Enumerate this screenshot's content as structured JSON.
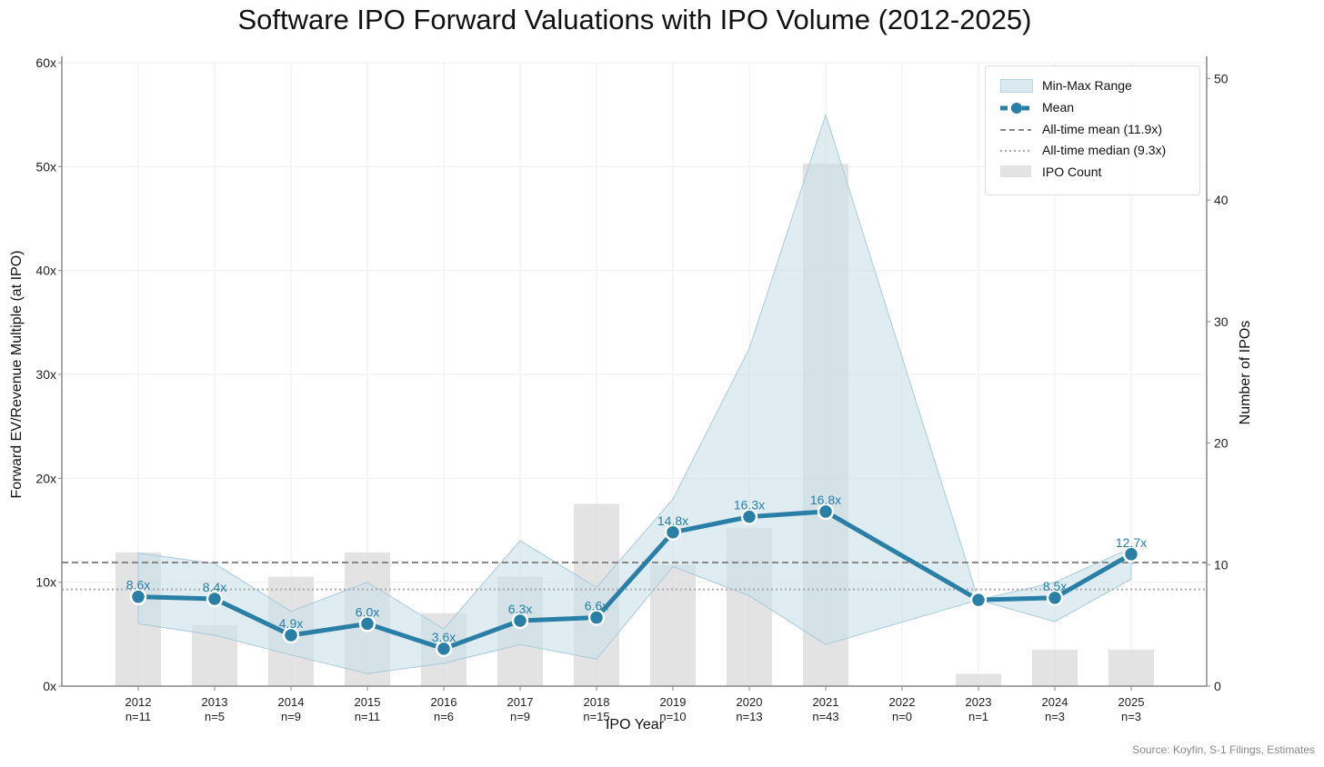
{
  "title": "Software IPO Forward Valuations with IPO Volume (2012-2025)",
  "source": "Source: Koyfin, S-1 Filings, Estimates",
  "legend": {
    "range": "Min-Max Range",
    "mean": "Mean",
    "all_mean": "All-time mean (11.9x)",
    "all_median": "All-time median (9.3x)",
    "count": "IPO Count"
  },
  "colors": {
    "mean": "#2a7fa6",
    "band": "#c9e0ea",
    "bar": "#d9d9d9",
    "label": "#2a7fa6"
  },
  "chart_data": {
    "type": "line",
    "title": "Software IPO Forward Valuations with IPO Volume (2012-2025)",
    "xlabel": "IPO Year",
    "ylabel": "Forward EV/Revenue Multiple (at IPO)",
    "y2label": "Number of IPOs",
    "ylim": [
      0,
      60
    ],
    "y2lim": [
      0,
      51.3
    ],
    "yticks": [
      0,
      10,
      20,
      30,
      40,
      50,
      60
    ],
    "ytick_labels": [
      "0x",
      "10x",
      "20x",
      "30x",
      "40x",
      "50x",
      "60x"
    ],
    "y2ticks": [
      0,
      10,
      20,
      30,
      40,
      50
    ],
    "years": [
      "2012",
      "2013",
      "2014",
      "2015",
      "2016",
      "2017",
      "2018",
      "2019",
      "2020",
      "2021",
      "2022",
      "2023",
      "2024",
      "2025"
    ],
    "n_labels": [
      "n=11",
      "n=5",
      "n=9",
      "n=11",
      "n=6",
      "n=9",
      "n=15",
      "n=10",
      "n=13",
      "n=43",
      "n=0",
      "n=1",
      "n=3",
      "n=3"
    ],
    "counts": [
      11,
      5,
      9,
      11,
      6,
      9,
      15,
      10,
      13,
      43,
      0,
      1,
      3,
      3
    ],
    "mean": [
      8.6,
      8.4,
      4.9,
      6.0,
      3.6,
      6.3,
      6.6,
      14.8,
      16.3,
      16.8,
      null,
      8.3,
      8.5,
      12.7
    ],
    "mean_labels": [
      "8.6x",
      "8.4x",
      "4.9x",
      "6.0x",
      "3.6x",
      "6.3x",
      "6.6x",
      "14.8x",
      "16.3x",
      "16.8x",
      "",
      "",
      "8.5x",
      "12.7x"
    ],
    "max": [
      12.8,
      11.8,
      7.2,
      10.0,
      5.5,
      14.0,
      9.5,
      18.0,
      32.5,
      55.0,
      null,
      8.3,
      10.0,
      13.3
    ],
    "min": [
      6.0,
      4.9,
      3.0,
      1.2,
      2.2,
      4.0,
      2.6,
      11.5,
      8.7,
      4.0,
      null,
      8.3,
      6.2,
      10.3
    ],
    "all_time_mean": 11.9,
    "all_time_median": 9.3,
    "legend_position": "top-right"
  }
}
